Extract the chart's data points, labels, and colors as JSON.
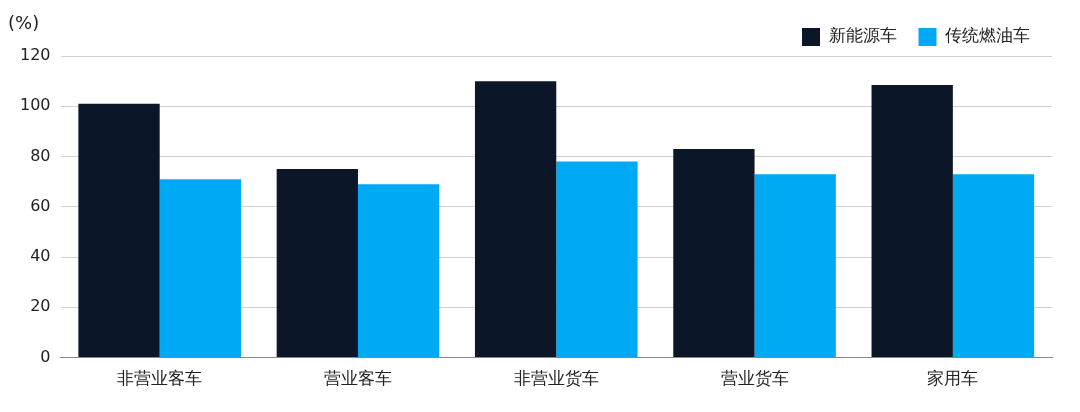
{
  "chart_data": {
    "type": "bar",
    "ylabel": "(%)",
    "categories": [
      "非营业客车",
      "营业客车",
      "非营业货车",
      "营业货车",
      "家用车"
    ],
    "series": [
      {
        "name": "新能源车",
        "color": "#0b1628",
        "values": [
          101,
          75,
          110,
          83,
          108.5
        ]
      },
      {
        "name": "传统燃油车",
        "color": "#00a9f4",
        "values": [
          71,
          69,
          78,
          73,
          73
        ]
      }
    ],
    "ylim": [
      0,
      120
    ],
    "yticks": [
      0,
      20,
      40,
      60,
      80,
      100,
      120
    ],
    "grid": "y",
    "legend": "top right"
  }
}
